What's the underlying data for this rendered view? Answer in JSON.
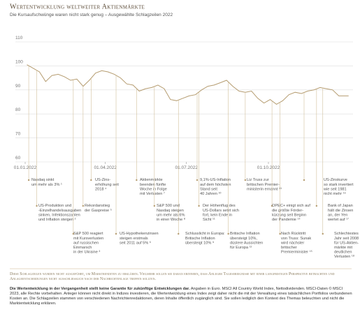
{
  "chart_data": {
    "type": "line",
    "title": "Wertentwicklung weltweiter Aktienmärkte",
    "subtitle": "Die Kursaufschwünge waren nicht stark genug – Ausgewählte Schlagzeilen 2022",
    "color": "#b59c70",
    "grid": true,
    "x": [
      "2022-01-03",
      "2022-01-10",
      "2022-01-17",
      "2022-01-24",
      "2022-01-31",
      "2022-02-07",
      "2022-02-14",
      "2022-02-21",
      "2022-02-28",
      "2022-03-07",
      "2022-03-14",
      "2022-03-21",
      "2022-03-28",
      "2022-04-04",
      "2022-04-11",
      "2022-04-18",
      "2022-04-25",
      "2022-05-02",
      "2022-05-09",
      "2022-05-16",
      "2022-05-23",
      "2022-05-30",
      "2022-06-06",
      "2022-06-13",
      "2022-06-20",
      "2022-06-27",
      "2022-07-04",
      "2022-07-11",
      "2022-07-18",
      "2022-07-25",
      "2022-08-01",
      "2022-08-08",
      "2022-08-15",
      "2022-08-22",
      "2022-08-29",
      "2022-09-05",
      "2022-09-12",
      "2022-09-19",
      "2022-09-26",
      "2022-10-03",
      "2022-10-10",
      "2022-10-17",
      "2022-10-24",
      "2022-10-31",
      "2022-11-07",
      "2022-11-14",
      "2022-11-21",
      "2022-11-28",
      "2022-12-05",
      "2022-12-12",
      "2022-12-19",
      "2022-12-30"
    ],
    "values": [
      100.5,
      99,
      97.5,
      93.5,
      96,
      96.5,
      95.5,
      94,
      94.5,
      91.5,
      94,
      97,
      98,
      97.5,
      96.5,
      95,
      92.5,
      92,
      89.5,
      90.5,
      91,
      92,
      90.5,
      86,
      85.5,
      86.5,
      87.5,
      88,
      90,
      91.5,
      92,
      93,
      94,
      91.5,
      89.5,
      89,
      89.5,
      86.5,
      84.5,
      86,
      84,
      85.5,
      88,
      89,
      88.5,
      89.5,
      90,
      91,
      90.5,
      90,
      87.5,
      87.5
    ],
    "xlim": [
      "2022-01-01",
      "2022-12-31"
    ],
    "xticks": [
      {
        "value": "2022-01-01",
        "label": "01.01.2022"
      },
      {
        "value": "2022-04-01",
        "label": "01.04.2022"
      },
      {
        "value": "2022-07-01",
        "label": "01.07.2022"
      },
      {
        "value": "2022-10-01",
        "label": "01.10.2022"
      }
    ],
    "ylim": [
      60,
      110
    ],
    "yticks": [
      60,
      70,
      80,
      90,
      100,
      110
    ],
    "annotations": [
      {
        "x": "2022-01-05",
        "lines": [
          "Nasdaq sinkt",
          "um mehr als 3% ¹"
        ]
      },
      {
        "x": "2022-01-14",
        "lines": [
          "US-Produktion und",
          "-Einzelhandelsausgaben",
          "sinken, Infektionszahlen",
          "und Inflation steigen ²"
        ]
      },
      {
        "x": "2022-02-24",
        "lines": [
          "S&P 500 reagiert",
          "mit Kursverlusten",
          "auf russischen",
          "Einmarsch",
          "in der Ukraine ³"
        ]
      },
      {
        "x": "2022-03-16",
        "lines": [
          "US-Zins-",
          "erhöhung seit",
          "2018 ⁴"
        ]
      },
      {
        "x": "2022-03-07",
        "lines": [
          "Rekordanstieg",
          "der Gaspreise ⁵"
        ]
      },
      {
        "x": "2022-04-13",
        "lines": [
          "US-Hypothekenzinsen",
          "steigen erstmals",
          "seit 2011 auf 5% ⁶"
        ]
      },
      {
        "x": "2022-05-06",
        "lines": [
          "Aktienmärkte",
          "beenden fünfte",
          "Woche in Folge",
          "mit Verlusten ⁷"
        ]
      },
      {
        "x": "2022-05-26",
        "lines": [
          "S&P 500 und",
          "Nasdaq steigen",
          "um mehr als 6%",
          "in einer Woche ⁸"
        ]
      },
      {
        "x": "2022-06-22",
        "lines": [
          "Schlusslicht in Europa:",
          "Britische Inflation",
          "übersteigt 10% ⁹"
        ]
      },
      {
        "x": "2022-07-13",
        "lines": [
          "9,1%-US-Inflation",
          "auf dem höchsten",
          "Stand seit",
          "40 Jahren ¹⁰"
        ]
      },
      {
        "x": "2022-07-15",
        "lines": [
          "Der Höhenflug des",
          "US-Dollars setzt sich",
          "fort, kein Ende in",
          "Sicht ¹¹"
        ]
      },
      {
        "x": "2022-08-17",
        "lines": [
          "Britische Inflation",
          "übersteigt 10%,",
          "düstere Aussichten",
          "für Europa ¹²"
        ]
      },
      {
        "x": "2022-09-05",
        "lines": [
          "Liz Truss zur",
          "britischen Premier-",
          "ministerin ernannt ¹³"
        ]
      },
      {
        "x": "2022-10-05",
        "lines": [
          "OPEC+ einigt sich auf",
          "die größte Förder-",
          "kürzung seit Beginn",
          "der Pandemie ¹⁴"
        ]
      },
      {
        "x": "2022-10-14",
        "lines": [
          "Nach Rücktritt",
          "von Truss: Sunak",
          "wird nächster",
          "britischer",
          "Premierminister ¹⁵"
        ]
      },
      {
        "x": "2022-11-10",
        "lines": [
          "US-Zinskurve",
          "so stark invertiert",
          "wie seit 1981",
          "nicht mehr ¹⁶"
        ]
      },
      {
        "x": "2022-11-24",
        "lines": [
          "Bank of Japan",
          "hält die Zinsen",
          "an, der Yen",
          "wertet auf ¹⁷"
        ]
      },
      {
        "x": "2022-12-01",
        "lines": [
          "Schlechtestes",
          "Jahr seit 2008",
          "für US-Aktien-",
          "märkte mit",
          "deutlichen",
          "Verlusten ¹⁸"
        ]
      }
    ],
    "note": "Diese Schlagzeilen wurden nicht ausgeführt, um Marktrenditen zu erklären. Vielmehr sollen sie daran erinnern, dass Anleger Tagesereignisse mit einer langfristigen Perspektive betrachten und Anlageentscheidungen nicht ausschließlich nach der Nachrichtenlage treffen sollten.",
    "disclaimer_bold": "Die Wertentwicklung in der Vergangenheit stellt keine Garantie für zukünftige Entwicklungen dar.",
    "disclaimer": "Angaben in Euro. MSCI All Country World Index, Nettodividenden. MSCI-Daten © MSCI 2023, alle Rechte vorbehalten. Anleger können nicht direkt in Indizes investieren, die Wertentwicklung eines Index zeigt daher nicht die mit der Verwaltung eines tatsächlichen Portfolios verbundenen Kosten an. Die Schlagzeilen stammen von verschiedenen Nachrichtenredaktionen, deren Inhalte öffentlich zugänglich sind. Sie sollen lediglich den Kontext des Themas beleuchten und nicht die Marktentwicklung erklären."
  }
}
